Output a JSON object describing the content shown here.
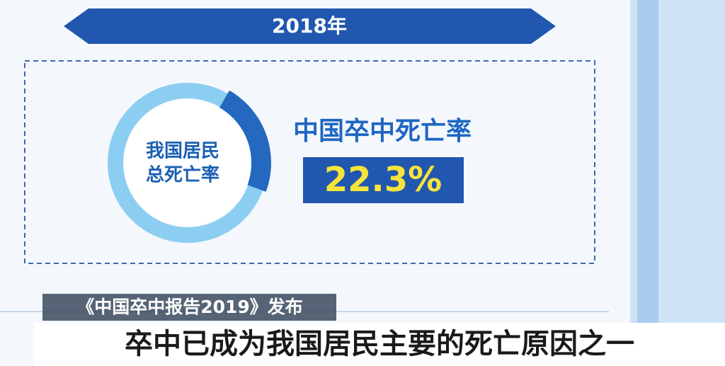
{
  "banner": {
    "year": "2018年"
  },
  "ring": {
    "label_lines": [
      "我国居民",
      "总死亡率"
    ],
    "share": 22.3
  },
  "stat": {
    "title": "中国卒中死亡率",
    "value_label": "22.3%"
  },
  "caption": {
    "source": "《中国卒中报告2019》发布",
    "headline": "卒中已成为我国居民主要的死亡原因之一"
  }
}
